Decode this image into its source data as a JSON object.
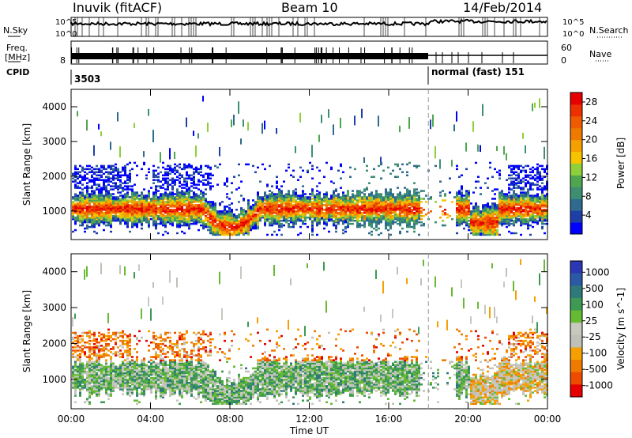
{
  "header": {
    "station": "Inuvik (fitACF)",
    "beam": "Beam 10",
    "date": "14/Feb/2014"
  },
  "strip": {
    "nsky_label": "N.Sky",
    "nsky_ticks": [
      "10^5",
      "10^0"
    ],
    "nsearch_label": "N.Search",
    "nsearch_ticks": [
      "10^5",
      "10^0"
    ],
    "freq_label_1": "Freq.",
    "freq_label_2": "[MHz]",
    "freq_ticks": [
      "8"
    ],
    "nave_label": "Nave",
    "nave_ticks": [
      "60",
      "0"
    ],
    "cpid_label": "CPID",
    "cpid_1": "3503",
    "cpid_2": "normal (fast) 151"
  },
  "colors": {
    "power": [
      "#0000ff",
      "#1f3fa8",
      "#2e6b8e",
      "#3d8f73",
      "#4fa64f",
      "#8ecf3a",
      "#f6c400",
      "#f5a000",
      "#ef7a00",
      "#f05a00",
      "#ee3000",
      "#e60000"
    ],
    "velocity": [
      "#2b37b3",
      "#2a5aa5",
      "#2d7a78",
      "#3c9a55",
      "#66bb33",
      "#c8c8c0",
      "#c0bfb8",
      "#f5a000",
      "#ef7a00",
      "#ee4a00",
      "#e60000"
    ]
  },
  "chart_data": [
    {
      "type": "heatmap",
      "quantity": "Power",
      "xlabel": "Time UT",
      "ylabel": "Slant Range [km]",
      "x_ticks": [
        "00:00",
        "04:00",
        "08:00",
        "12:00",
        "16:00",
        "20:00",
        "00:00"
      ],
      "x_range_hours": [
        0,
        24
      ],
      "y_ticks": [
        1000,
        2000,
        3000,
        4000
      ],
      "ylim": [
        180,
        4500
      ],
      "colorbar_label": "Power [dB]",
      "colorbar_ticks": [
        4,
        8,
        12,
        16,
        20,
        24,
        28
      ],
      "colorbar_range": [
        0,
        30
      ],
      "marker_hour": 18.0
    },
    {
      "type": "heatmap",
      "quantity": "Velocity",
      "xlabel": "Time UT",
      "ylabel": "Slant Range [km]",
      "x_ticks": [
        "00:00",
        "04:00",
        "08:00",
        "12:00",
        "16:00",
        "20:00",
        "00:00"
      ],
      "x_range_hours": [
        0,
        24
      ],
      "y_ticks": [
        1000,
        2000,
        3000,
        4000
      ],
      "ylim": [
        180,
        4500
      ],
      "colorbar_label": "Velocity [m s^-1]",
      "colorbar_ticks": [
        1000,
        500,
        100,
        25,
        -25,
        -100,
        -500,
        -1000
      ],
      "marker_hour": 18.0
    }
  ]
}
